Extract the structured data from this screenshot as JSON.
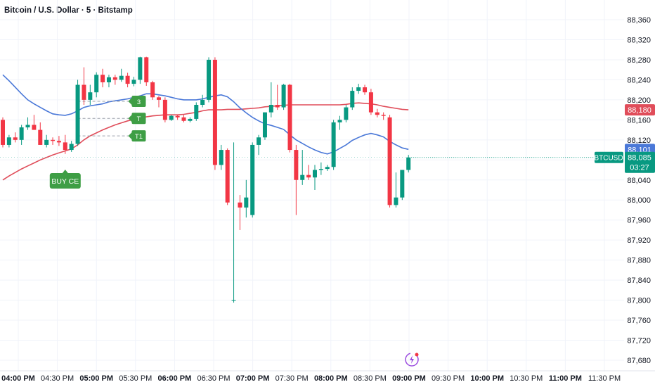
{
  "header": {
    "title": "Bitcoin / U.S. Dollar · 5 · Bitstamp"
  },
  "colors": {
    "up": "#089981",
    "down": "#f23645",
    "ma_fast": "#4a78d8",
    "ma_slow": "#e04d5a",
    "signal": "#3e9e45",
    "grid": "#f0f3fa",
    "axis_text": "#131722",
    "price_line": "#089981"
  },
  "chart_data": {
    "type": "candlestick",
    "symbol": "BTCUSD",
    "title": "Bitcoin / U.S. Dollar · 5 · Bitstamp",
    "ylim": [
      87660,
      88380
    ],
    "y_ticks": [
      87680,
      87720,
      87760,
      87800,
      87840,
      87880,
      87920,
      87960,
      88000,
      88040,
      88080,
      88120,
      88160,
      88200,
      88240,
      88280,
      88320,
      88360
    ],
    "y_tick_labels": [
      "87,680",
      "87,720",
      "87,760",
      "87,800",
      "87,840",
      "87,880",
      "87,920",
      "87,960",
      "88,000",
      "88,040",
      "88,080",
      "88,120",
      "88,160",
      "88,200",
      "88,240",
      "88,280",
      "88,320",
      "88,360"
    ],
    "x_time_labels": [
      {
        "t": "04:00 PM",
        "bold": true
      },
      {
        "t": "04:30 PM",
        "bold": false
      },
      {
        "t": "05:00 PM",
        "bold": true
      },
      {
        "t": "05:30 PM",
        "bold": false
      },
      {
        "t": "06:00 PM",
        "bold": true
      },
      {
        "t": "06:30 PM",
        "bold": false
      },
      {
        "t": "07:00 PM",
        "bold": true
      },
      {
        "t": "07:30 PM",
        "bold": false
      },
      {
        "t": "08:00 PM",
        "bold": true
      },
      {
        "t": "08:30 PM",
        "bold": false
      },
      {
        "t": "09:00 PM",
        "bold": true
      },
      {
        "t": "09:30 PM",
        "bold": false
      },
      {
        "t": "10:00 PM",
        "bold": true
      },
      {
        "t": "10:30 PM",
        "bold": false
      },
      {
        "t": "11:00 PM",
        "bold": true
      },
      {
        "t": "11:30 PM",
        "bold": false
      }
    ],
    "candles": [
      {
        "t": "15:55",
        "o": 88160,
        "h": 88165,
        "l": 88105,
        "c": 88110
      },
      {
        "t": "16:00",
        "o": 88110,
        "h": 88130,
        "l": 88105,
        "c": 88125
      },
      {
        "t": "16:05",
        "o": 88125,
        "h": 88135,
        "l": 88115,
        "c": 88120
      },
      {
        "t": "16:10",
        "o": 88120,
        "h": 88150,
        "l": 88110,
        "c": 88145
      },
      {
        "t": "16:15",
        "o": 88145,
        "h": 88165,
        "l": 88140,
        "c": 88150
      },
      {
        "t": "16:20",
        "o": 88150,
        "h": 88170,
        "l": 88140,
        "c": 88140
      },
      {
        "t": "16:25",
        "o": 88140,
        "h": 88155,
        "l": 88110,
        "c": 88110
      },
      {
        "t": "16:30",
        "o": 88110,
        "h": 88130,
        "l": 88105,
        "c": 88120
      },
      {
        "t": "16:35",
        "o": 88120,
        "h": 88125,
        "l": 88110,
        "c": 88118
      },
      {
        "t": "16:40",
        "o": 88118,
        "h": 88128,
        "l": 88108,
        "c": 88115
      },
      {
        "t": "16:45",
        "o": 88115,
        "h": 88130,
        "l": 88092,
        "c": 88100
      },
      {
        "t": "16:50",
        "o": 88100,
        "h": 88118,
        "l": 88096,
        "c": 88112
      },
      {
        "t": "16:55",
        "o": 88112,
        "h": 88240,
        "l": 88108,
        "c": 88230
      },
      {
        "t": "17:00",
        "o": 88230,
        "h": 88265,
        "l": 88190,
        "c": 88200
      },
      {
        "t": "17:05",
        "o": 88200,
        "h": 88230,
        "l": 88190,
        "c": 88215
      },
      {
        "t": "17:10",
        "o": 88215,
        "h": 88255,
        "l": 88205,
        "c": 88250
      },
      {
        "t": "17:15",
        "o": 88250,
        "h": 88262,
        "l": 88225,
        "c": 88235
      },
      {
        "t": "17:20",
        "o": 88235,
        "h": 88250,
        "l": 88225,
        "c": 88245
      },
      {
        "t": "17:25",
        "o": 88245,
        "h": 88250,
        "l": 88230,
        "c": 88240
      },
      {
        "t": "17:30",
        "o": 88240,
        "h": 88262,
        "l": 88236,
        "c": 88248
      },
      {
        "t": "17:35",
        "o": 88248,
        "h": 88254,
        "l": 88225,
        "c": 88232
      },
      {
        "t": "17:40",
        "o": 88232,
        "h": 88246,
        "l": 88227,
        "c": 88240
      },
      {
        "t": "17:45",
        "o": 88240,
        "h": 88286,
        "l": 88232,
        "c": 88285
      },
      {
        "t": "17:50",
        "o": 88285,
        "h": 88286,
        "l": 88228,
        "c": 88235
      },
      {
        "t": "17:55",
        "o": 88235,
        "h": 88238,
        "l": 88200,
        "c": 88205
      },
      {
        "t": "18:00",
        "o": 88205,
        "h": 88208,
        "l": 88185,
        "c": 88200
      },
      {
        "t": "18:05",
        "o": 88200,
        "h": 88205,
        "l": 88155,
        "c": 88160
      },
      {
        "t": "18:10",
        "o": 88160,
        "h": 88170,
        "l": 88158,
        "c": 88168
      },
      {
        "t": "18:15",
        "o": 88168,
        "h": 88170,
        "l": 88160,
        "c": 88165
      },
      {
        "t": "18:20",
        "o": 88165,
        "h": 88170,
        "l": 88155,
        "c": 88158
      },
      {
        "t": "18:25",
        "o": 88158,
        "h": 88165,
        "l": 88155,
        "c": 88162
      },
      {
        "t": "18:30",
        "o": 88162,
        "h": 88195,
        "l": 88158,
        "c": 88190
      },
      {
        "t": "18:35",
        "o": 88190,
        "h": 88210,
        "l": 88185,
        "c": 88200
      },
      {
        "t": "18:40",
        "o": 88200,
        "h": 88285,
        "l": 88195,
        "c": 88280
      },
      {
        "t": "18:45",
        "o": 88280,
        "h": 88285,
        "l": 88060,
        "c": 88070
      },
      {
        "t": "18:50",
        "o": 88070,
        "h": 88110,
        "l": 88060,
        "c": 88100
      },
      {
        "t": "18:55",
        "o": 88100,
        "h": 88103,
        "l": 87990,
        "c": 87995
      },
      {
        "t": "19:00",
        "o": 87800,
        "h": 88115,
        "l": 87795,
        "c": 87800
      },
      {
        "t": "19:05",
        "o": 87995,
        "h": 88010,
        "l": 87940,
        "c": 87985
      },
      {
        "t": "19:10",
        "o": 87985,
        "h": 88040,
        "l": 87965,
        "c": 88005
      },
      {
        "t": "19:15",
        "o": 87970,
        "h": 88115,
        "l": 87965,
        "c": 88110
      },
      {
        "t": "19:20",
        "o": 88110,
        "h": 88130,
        "l": 88090,
        "c": 88125
      },
      {
        "t": "19:25",
        "o": 88125,
        "h": 88175,
        "l": 88120,
        "c": 88175
      },
      {
        "t": "19:30",
        "o": 88175,
        "h": 88235,
        "l": 88165,
        "c": 88190
      },
      {
        "t": "19:35",
        "o": 88190,
        "h": 88230,
        "l": 88180,
        "c": 88185
      },
      {
        "t": "19:40",
        "o": 88185,
        "h": 88232,
        "l": 88180,
        "c": 88230
      },
      {
        "t": "19:45",
        "o": 88230,
        "h": 88232,
        "l": 88095,
        "c": 88100
      },
      {
        "t": "19:50",
        "o": 88100,
        "h": 88110,
        "l": 87970,
        "c": 88040
      },
      {
        "t": "19:55",
        "o": 88040,
        "h": 88100,
        "l": 88030,
        "c": 88050
      },
      {
        "t": "20:00",
        "o": 88050,
        "h": 88070,
        "l": 88040,
        "c": 88045
      },
      {
        "t": "20:05",
        "o": 88045,
        "h": 88070,
        "l": 88020,
        "c": 88060
      },
      {
        "t": "20:10",
        "o": 88060,
        "h": 88075,
        "l": 88050,
        "c": 88062
      },
      {
        "t": "20:15",
        "o": 88062,
        "h": 88070,
        "l": 88058,
        "c": 88066
      },
      {
        "t": "20:20",
        "o": 88066,
        "h": 88160,
        "l": 88060,
        "c": 88155
      },
      {
        "t": "20:25",
        "o": 88155,
        "h": 88168,
        "l": 88140,
        "c": 88160
      },
      {
        "t": "20:30",
        "o": 88160,
        "h": 88190,
        "l": 88155,
        "c": 88185
      },
      {
        "t": "20:35",
        "o": 88185,
        "h": 88225,
        "l": 88180,
        "c": 88218
      },
      {
        "t": "20:40",
        "o": 88218,
        "h": 88232,
        "l": 88212,
        "c": 88225
      },
      {
        "t": "20:45",
        "o": 88225,
        "h": 88230,
        "l": 88210,
        "c": 88215
      },
      {
        "t": "20:50",
        "o": 88215,
        "h": 88222,
        "l": 88170,
        "c": 88175
      },
      {
        "t": "20:55",
        "o": 88175,
        "h": 88182,
        "l": 88165,
        "c": 88170
      },
      {
        "t": "21:00",
        "o": 88170,
        "h": 88175,
        "l": 88160,
        "c": 88168
      },
      {
        "t": "21:05",
        "o": 88165,
        "h": 88170,
        "l": 87985,
        "c": 87990
      },
      {
        "t": "21:10",
        "o": 87990,
        "h": 88055,
        "l": 87985,
        "c": 88005
      },
      {
        "t": "21:15",
        "o": 88005,
        "h": 88060,
        "l": 88000,
        "c": 88060
      },
      {
        "t": "21:20",
        "o": 88060,
        "h": 88090,
        "l": 88055,
        "c": 88085
      }
    ],
    "ma_fast": [
      88250,
      88238,
      88225,
      88212,
      88200,
      88192,
      88185,
      88178,
      88172,
      88170,
      88169,
      88172,
      88178,
      88185,
      88188,
      88190,
      88192,
      88196,
      88198,
      88200,
      88202,
      88205,
      88208,
      88212,
      88212,
      88210,
      88208,
      88205,
      88202,
      88200,
      88200,
      88200,
      88202,
      88205,
      88208,
      88210,
      88206,
      88196,
      88184,
      88174,
      88165,
      88158,
      88152,
      88149,
      88145,
      88141,
      88130,
      88120,
      88113,
      88106,
      88100,
      88095,
      88092,
      88096,
      88103,
      88110,
      88119,
      88125,
      88130,
      88133,
      88130,
      88126,
      88117,
      88110,
      88104,
      88101
    ],
    "ma_slow": [
      88040,
      88048,
      88055,
      88062,
      88068,
      88074,
      88080,
      88085,
      88090,
      88094,
      88098,
      88102,
      88110,
      88120,
      88128,
      88134,
      88140,
      88145,
      88150,
      88154,
      88158,
      88161,
      88164,
      88166,
      88168,
      88169,
      88170,
      88170,
      88170,
      88171,
      88173,
      88175,
      88178,
      88180,
      88180,
      88180,
      88181,
      88181,
      88181,
      88182,
      88183,
      88184,
      88186,
      88187,
      88188,
      88189,
      88190,
      88190,
      88190,
      88190,
      88190,
      88190,
      88190,
      88190,
      88190,
      88191,
      88193,
      88194,
      88193,
      88192,
      88190,
      88187,
      88185,
      88183,
      88181,
      88180
    ],
    "signals": [
      {
        "label": "BUY CE",
        "type": "buy",
        "candle": 10
      },
      {
        "label": "T1",
        "type": "target",
        "candle": 21,
        "price": 88128
      },
      {
        "label": "T",
        "type": "target",
        "candle": 21,
        "price": 88163
      },
      {
        "label": "3",
        "type": "target",
        "candle": 21,
        "price": 88197
      }
    ],
    "target_levels": [
      88128,
      88163,
      88197
    ],
    "price_labels": [
      {
        "value": "88,180",
        "color": "#e04d5a"
      },
      {
        "value": "88,101",
        "color": "#4a78d8"
      },
      {
        "symbol": "BTCUSD",
        "value": "88,085",
        "countdown": "03:27",
        "color": "#089981"
      }
    ],
    "current_price": 88085
  }
}
